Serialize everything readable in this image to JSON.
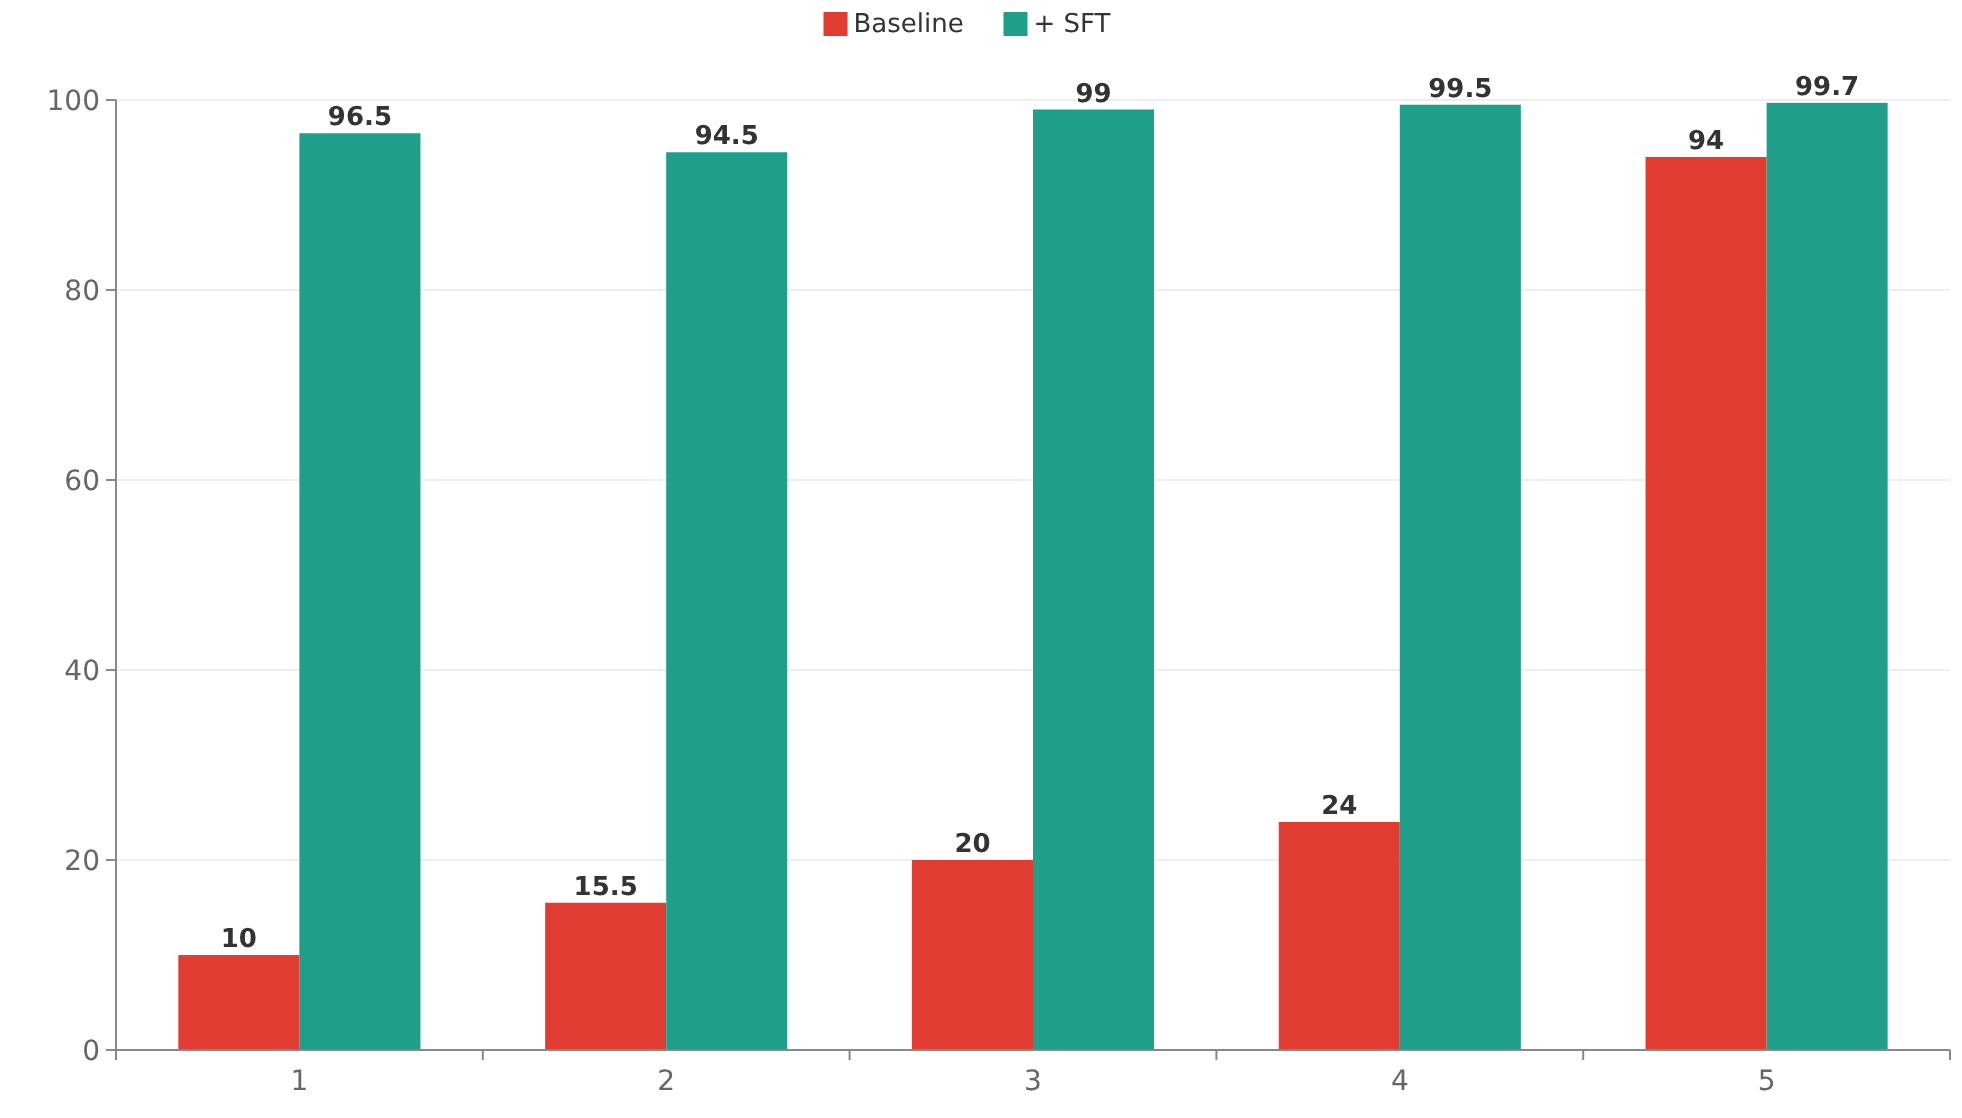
{
  "chart_data": {
    "type": "bar",
    "categories": [
      "1",
      "2",
      "3",
      "4",
      "5"
    ],
    "series": [
      {
        "name": "Baseline",
        "color": "#e03c31",
        "values": [
          10,
          15.5,
          20,
          24,
          94
        ]
      },
      {
        "name": "+ SFT",
        "color": "#1f9e89",
        "values": [
          96.5,
          94.5,
          99,
          99.5,
          99.7
        ]
      }
    ],
    "ylim": [
      0,
      100
    ],
    "yticks": [
      0,
      20,
      40,
      60,
      80,
      100
    ],
    "grid": "y",
    "legend": "top",
    "data_labels": true
  }
}
